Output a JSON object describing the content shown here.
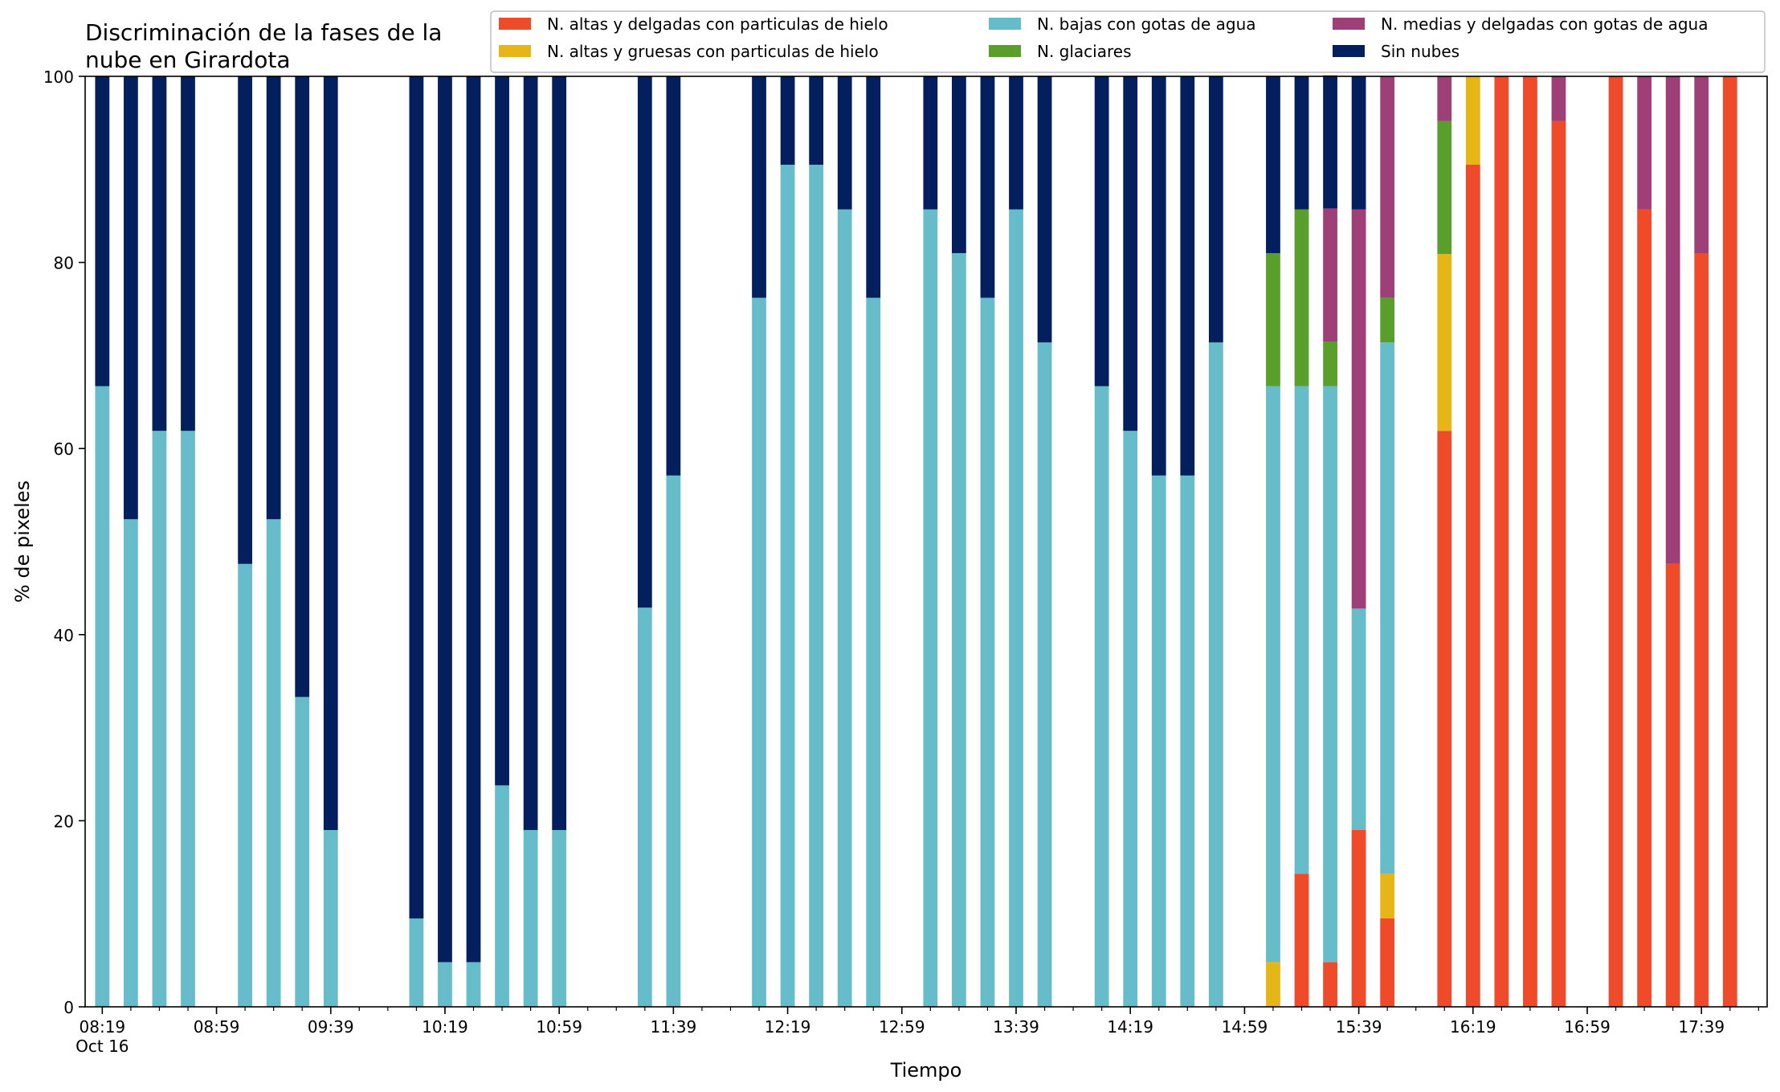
{
  "chart_data": {
    "type": "bar",
    "stacked": true,
    "title": "Discriminación de la fases de la\nnube en Girardota",
    "xlabel": "Tiempo",
    "ylabel": "% de pixeles",
    "ylim": [
      0,
      100
    ],
    "yticks": [
      0,
      20,
      40,
      60,
      80,
      100
    ],
    "xlim": [
      "08:13",
      "18:02"
    ],
    "bar_width_minutes": 5,
    "xticks_major": [
      {
        "time": "08:19",
        "label": "08:19",
        "sublabel": "Oct 16"
      },
      {
        "time": "08:59",
        "label": "08:59"
      },
      {
        "time": "09:39",
        "label": "09:39"
      },
      {
        "time": "10:19",
        "label": "10:19"
      },
      {
        "time": "10:59",
        "label": "10:59"
      },
      {
        "time": "11:39",
        "label": "11:39"
      },
      {
        "time": "12:19",
        "label": "12:19"
      },
      {
        "time": "12:59",
        "label": "12:59"
      },
      {
        "time": "13:39",
        "label": "13:39"
      },
      {
        "time": "14:19",
        "label": "14:19"
      },
      {
        "time": "14:59",
        "label": "14:59"
      },
      {
        "time": "15:39",
        "label": "15:39"
      },
      {
        "time": "16:19",
        "label": "16:19"
      },
      {
        "time": "16:59",
        "label": "16:59"
      },
      {
        "time": "17:39",
        "label": "17:39"
      }
    ],
    "xticks_minor_step_minutes": 10,
    "legend_position": "top-right",
    "legend_columns": 3,
    "series": [
      {
        "key": "altas_delgadas",
        "name": "N. altas y delgadas con particulas de hielo",
        "color": "#ef4a2a"
      },
      {
        "key": "altas_gruesas",
        "name": "N. altas y gruesas con particulas de hielo",
        "color": "#e5b616"
      },
      {
        "key": "bajas_agua",
        "name": "N. bajas con gotas de agua",
        "color": "#66bdc9"
      },
      {
        "key": "glaciares",
        "name": "N. glaciares",
        "color": "#5a9e2c"
      },
      {
        "key": "medias_agua",
        "name": "N. medias y delgadas con gotas de agua",
        "color": "#9e3f78"
      },
      {
        "key": "sin_nubes",
        "name": "Sin nubes",
        "color": "#031f5e"
      }
    ],
    "stack_order": [
      "altas_delgadas",
      "altas_gruesas",
      "bajas_agua",
      "glaciares",
      "medias_agua",
      "sin_nubes"
    ],
    "bars": [
      {
        "time": "08:19",
        "values": [
          0,
          0,
          66.7,
          0,
          0,
          33.3
        ]
      },
      {
        "time": "08:29",
        "values": [
          0,
          0,
          52.4,
          0,
          0,
          47.6
        ]
      },
      {
        "time": "08:39",
        "values": [
          0,
          0,
          61.9,
          0,
          0,
          38.1
        ]
      },
      {
        "time": "08:49",
        "values": [
          0,
          0,
          61.9,
          0,
          0,
          38.1
        ]
      },
      {
        "time": "09:09",
        "values": [
          0,
          0,
          47.6,
          0,
          0,
          52.4
        ]
      },
      {
        "time": "09:19",
        "values": [
          0,
          0,
          52.4,
          0,
          0,
          47.6
        ]
      },
      {
        "time": "09:29",
        "values": [
          0,
          0,
          33.3,
          0,
          0,
          66.7
        ]
      },
      {
        "time": "09:39",
        "values": [
          0,
          0,
          19.0,
          0,
          0,
          81.0
        ]
      },
      {
        "time": "10:09",
        "values": [
          0,
          0,
          9.5,
          0,
          0,
          90.5
        ]
      },
      {
        "time": "10:19",
        "values": [
          0,
          0,
          4.8,
          0,
          0,
          95.2
        ]
      },
      {
        "time": "10:29",
        "values": [
          0,
          0,
          4.8,
          0,
          0,
          95.2
        ]
      },
      {
        "time": "10:39",
        "values": [
          0,
          0,
          23.8,
          0,
          0,
          76.2
        ]
      },
      {
        "time": "10:49",
        "values": [
          0,
          0,
          19.0,
          0,
          0,
          81.0
        ]
      },
      {
        "time": "10:59",
        "values": [
          0,
          0,
          19.0,
          0,
          0,
          81.0
        ]
      },
      {
        "time": "11:29",
        "values": [
          0,
          0,
          42.9,
          0,
          0,
          57.1
        ]
      },
      {
        "time": "11:39",
        "values": [
          0,
          0,
          57.1,
          0,
          0,
          42.9
        ]
      },
      {
        "time": "12:09",
        "values": [
          0,
          0,
          76.2,
          0,
          0,
          23.8
        ]
      },
      {
        "time": "12:19",
        "values": [
          0,
          0,
          90.5,
          0,
          0,
          9.5
        ]
      },
      {
        "time": "12:29",
        "values": [
          0,
          0,
          90.5,
          0,
          0,
          9.5
        ]
      },
      {
        "time": "12:39",
        "values": [
          0,
          0,
          85.7,
          0,
          0,
          14.3
        ]
      },
      {
        "time": "12:49",
        "values": [
          0,
          0,
          76.2,
          0,
          0,
          23.8
        ]
      },
      {
        "time": "13:09",
        "values": [
          0,
          0,
          85.7,
          0,
          0,
          14.3
        ]
      },
      {
        "time": "13:19",
        "values": [
          0,
          0,
          81.0,
          0,
          0,
          19.0
        ]
      },
      {
        "time": "13:29",
        "values": [
          0,
          0,
          76.2,
          0,
          0,
          23.8
        ]
      },
      {
        "time": "13:39",
        "values": [
          0,
          0,
          85.7,
          0,
          0,
          14.3
        ]
      },
      {
        "time": "13:49",
        "values": [
          0,
          0,
          71.4,
          0,
          0,
          28.6
        ]
      },
      {
        "time": "14:09",
        "values": [
          0,
          0,
          66.7,
          0,
          0,
          33.3
        ]
      },
      {
        "time": "14:19",
        "values": [
          0,
          0,
          61.9,
          0,
          0,
          38.1
        ]
      },
      {
        "time": "14:29",
        "values": [
          0,
          0,
          57.1,
          0,
          0,
          42.9
        ]
      },
      {
        "time": "14:39",
        "values": [
          0,
          0,
          57.1,
          0,
          0,
          42.9
        ]
      },
      {
        "time": "14:49",
        "values": [
          0,
          0,
          71.4,
          0,
          0,
          28.6
        ]
      },
      {
        "time": "15:09",
        "values": [
          0,
          4.8,
          61.9,
          14.3,
          0,
          19.0
        ]
      },
      {
        "time": "15:19",
        "values": [
          14.3,
          0,
          52.4,
          19.0,
          0,
          14.3
        ]
      },
      {
        "time": "15:29",
        "values": [
          4.8,
          0,
          61.9,
          4.8,
          14.3,
          14.3
        ]
      },
      {
        "time": "15:39",
        "values": [
          19.0,
          0,
          23.8,
          0,
          42.9,
          14.3
        ]
      },
      {
        "time": "15:49",
        "values": [
          9.5,
          4.8,
          57.1,
          4.8,
          23.8,
          0
        ]
      },
      {
        "time": "16:09",
        "values": [
          61.9,
          19.0,
          0,
          14.3,
          4.8,
          0
        ]
      },
      {
        "time": "16:19",
        "values": [
          90.5,
          9.5,
          0,
          0,
          0,
          0
        ]
      },
      {
        "time": "16:29",
        "values": [
          100,
          0,
          0,
          0,
          0,
          0
        ]
      },
      {
        "time": "16:39",
        "values": [
          100,
          0,
          0,
          0,
          0,
          0
        ]
      },
      {
        "time": "16:49",
        "values": [
          95.2,
          0,
          0,
          0,
          4.8,
          0
        ]
      },
      {
        "time": "17:09",
        "values": [
          100,
          0,
          0,
          0,
          0,
          0
        ]
      },
      {
        "time": "17:19",
        "values": [
          85.7,
          0,
          0,
          0,
          14.3,
          0
        ]
      },
      {
        "time": "17:29",
        "values": [
          47.6,
          0,
          0,
          0,
          52.4,
          0
        ]
      },
      {
        "time": "17:39",
        "values": [
          81.0,
          0,
          0,
          0,
          19.0,
          0
        ]
      },
      {
        "time": "17:49",
        "values": [
          100,
          0,
          0,
          0,
          0,
          0
        ]
      }
    ]
  }
}
